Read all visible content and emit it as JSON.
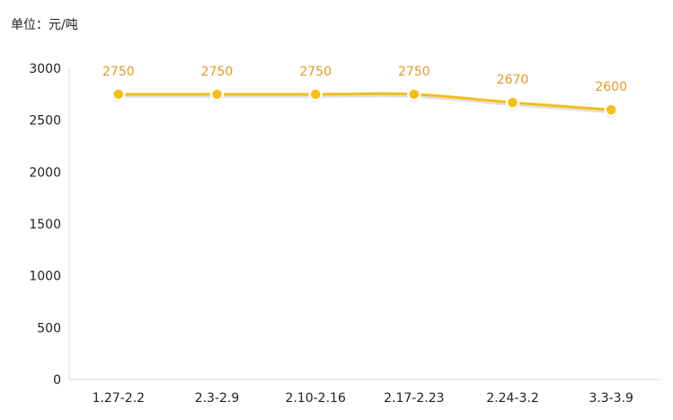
{
  "unit_label": "单位：元/吨",
  "colors": {
    "line": "#F5BE18",
    "marker_fill": "#F5BE18",
    "marker_stroke": "#ffffff",
    "data_label": "#E5981F",
    "axis": "#D8D8D8",
    "tick_text": "#222222"
  },
  "chart_data": {
    "type": "line",
    "categories": [
      "1.27-2.2",
      "2.3-2.9",
      "2.10-2.16",
      "2.17-2.23",
      "2.24-3.2",
      "3.3-3.9"
    ],
    "values": [
      2750,
      2750,
      2750,
      2750,
      2670,
      2600
    ],
    "data_labels": [
      "2750",
      "2750",
      "2750",
      "2750",
      "2670",
      "2600"
    ],
    "ylim": [
      0,
      3000
    ],
    "yticks": [
      0,
      500,
      1000,
      1500,
      2000,
      2500,
      3000
    ],
    "ytick_labels": [
      "0",
      "500",
      "1000",
      "1500",
      "2000",
      "2500",
      "3000"
    ],
    "grid": false,
    "title": "",
    "xlabel": "",
    "ylabel": ""
  }
}
